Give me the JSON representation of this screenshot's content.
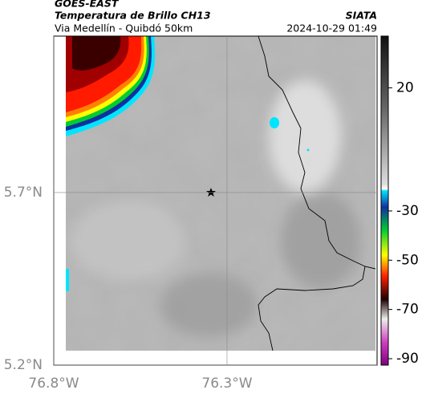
{
  "header": {
    "source": "GOES-EAST",
    "title": "Temperatura de Brillo CH13",
    "subtitle": "Via Medellín - Quibdó 50km",
    "brand": "SIATA",
    "datetime": "2024-10-29 01:49"
  },
  "map": {
    "lat_range": [
      5.2,
      6.153
    ],
    "lon_range": [
      -76.8,
      -75.867
    ],
    "lat_ticks": [
      {
        "value": 5.7,
        "label": "5.7°N"
      },
      {
        "value": 5.2,
        "label": "5.2°N"
      }
    ],
    "lon_ticks": [
      {
        "value": -76.8,
        "label": "76.8°W"
      },
      {
        "value": -76.3,
        "label": "76.3°W"
      }
    ]
  },
  "colorbar": {
    "range": [
      -92.6,
      41
    ],
    "ticks": [
      20,
      -30,
      -50,
      -70,
      -90
    ]
  }
}
